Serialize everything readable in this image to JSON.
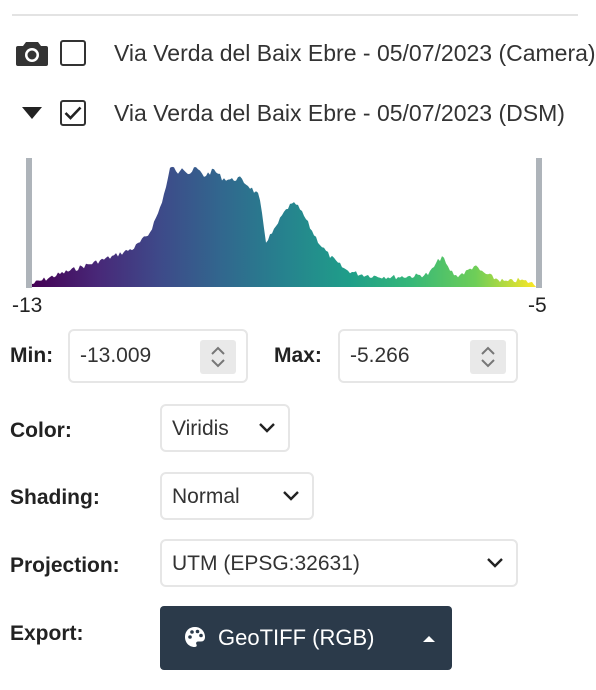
{
  "layers": [
    {
      "label": "Via Verda del Baix Ebre - 05/07/2023 (Camera)",
      "icon": "camera-icon",
      "checked": false
    },
    {
      "label": "Via Verda del Baix Ebre - 05/07/2023 (DSM)",
      "icon": "caret-down-icon",
      "checked": true
    }
  ],
  "histogram": {
    "range_min_label": "-13",
    "range_max_label": "-5",
    "colormap": "viridis"
  },
  "min": {
    "label": "Min:",
    "value": "-13.009"
  },
  "max": {
    "label": "Max:",
    "value": "-5.266"
  },
  "color": {
    "label": "Color:",
    "value": "Viridis"
  },
  "shading": {
    "label": "Shading:",
    "value": "Normal"
  },
  "projection": {
    "label": "Projection:",
    "value": "UTM (EPSG:32631)"
  },
  "export": {
    "label": "Export:",
    "button_label": "GeoTIFF (RGB)",
    "icon": "palette-icon"
  },
  "colors": {
    "button_bg": "#2b3a4a",
    "histogram_handle": "#aeb4ba"
  }
}
